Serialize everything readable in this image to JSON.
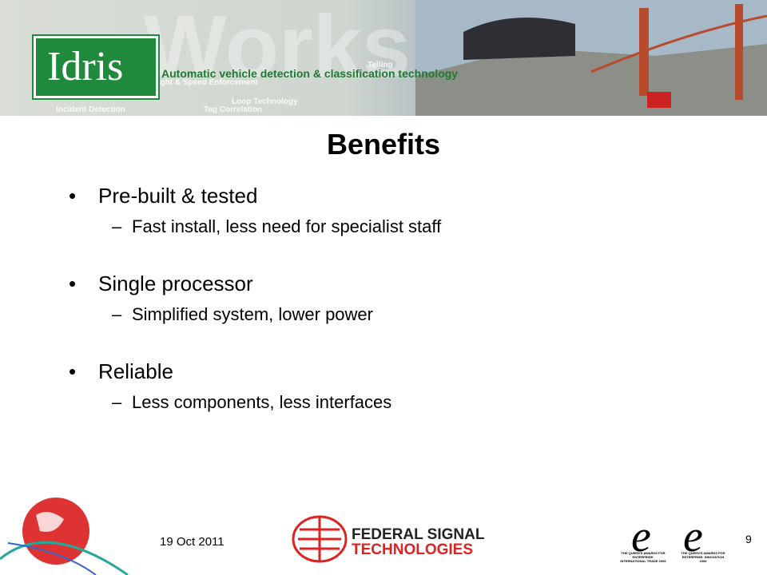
{
  "header": {
    "logo": "Idris",
    "tagline": "Automatic vehicle detection & classification technology",
    "watermark": "Works",
    "background_texts": [
      "Red Light & Speed Enforcement",
      "Loop Technology",
      "Incident Detection",
      "Tag Correlation",
      "Telling"
    ]
  },
  "title": "Benefits",
  "bullets": [
    {
      "text": "Pre-built & tested",
      "sub": [
        "Fast install, less need for specialist staff"
      ]
    },
    {
      "text": "Single processor",
      "sub": [
        "Simplified system, lower power"
      ]
    },
    {
      "text": "Reliable",
      "sub": [
        "Less components, less interfaces"
      ]
    }
  ],
  "footer": {
    "date": "19 Oct 2011",
    "company": [
      "FEDERAL SIGNAL",
      "TECHNOLOGIES"
    ],
    "awards": [
      "THE QUEEN'S AWARDS FOR ENTERPRISE: INTERNATIONAL TRADE 2006",
      "THE QUEEN'S AWARDS FOR ENTERPRISE: INNOVATION 2008"
    ],
    "page": "9"
  }
}
